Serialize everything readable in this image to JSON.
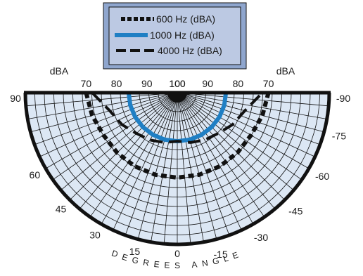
{
  "chart_data": {
    "type": "polar",
    "legend": {
      "placement": "top-center",
      "background": "#8fa6ce",
      "inner_background": "#bcc9e3",
      "entries": [
        {
          "label": "600 Hz (dBA)",
          "color": "#111111",
          "style": "dotted"
        },
        {
          "label": "1000 Hz (dBA)",
          "color": "#1f7fc4",
          "style": "solid"
        },
        {
          "label": "4000 Hz (dBA)",
          "color": "#111111",
          "style": "dashed"
        }
      ]
    },
    "radial_axis": {
      "label_left": "dBA",
      "label_right": "dBA",
      "ticks": [
        "100",
        "90",
        "80",
        "70"
      ],
      "range": [
        50,
        100
      ]
    },
    "angle_axis": {
      "label": "DEGREES ANGLE",
      "ticks_left": [
        "90",
        "60",
        "45",
        "30",
        "15"
      ],
      "center_tick": "0",
      "ticks_right": [
        "-90",
        "-75",
        "-60",
        "-45",
        "-30",
        "-15"
      ]
    },
    "series": [
      {
        "name": "600 Hz (dBA)",
        "angles": [
          90,
          75,
          60,
          45,
          30,
          15,
          0,
          -15,
          -30,
          -45,
          -60,
          -75,
          -90
        ],
        "values": [
          70,
          71,
          72,
          72,
          72,
          72,
          72,
          72,
          72,
          72,
          72,
          71,
          70
        ]
      },
      {
        "name": "1000 Hz (dBA)",
        "angles": [
          90,
          75,
          60,
          45,
          30,
          15,
          0,
          -15,
          -30,
          -45,
          -60,
          -75,
          -90
        ],
        "values": [
          84,
          84,
          84,
          84,
          84,
          84,
          84,
          84,
          84,
          84,
          84,
          84,
          84
        ]
      },
      {
        "name": "4000 Hz (dBA)",
        "angles": [
          90,
          75,
          60,
          45,
          30,
          15,
          0,
          -15,
          -30,
          -45,
          -60,
          -75,
          -90
        ],
        "values": [
          72,
          77,
          79,
          81,
          82,
          83,
          84,
          83,
          82,
          81,
          79,
          77,
          72
        ]
      }
    ],
    "colors": {
      "fill": "#dce7f4",
      "grid": "#111111",
      "rim": "#111111"
    }
  }
}
